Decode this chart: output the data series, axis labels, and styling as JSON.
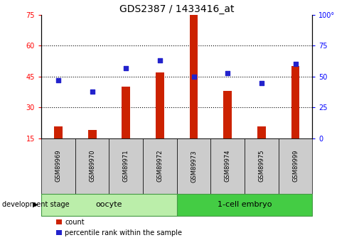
{
  "title": "GDS2387 / 1433416_at",
  "samples": [
    "GSM89969",
    "GSM89970",
    "GSM89971",
    "GSM89972",
    "GSM89973",
    "GSM89974",
    "GSM89975",
    "GSM89999"
  ],
  "counts": [
    21,
    19,
    40,
    47,
    75,
    38,
    21,
    50
  ],
  "percentiles": [
    47,
    38,
    57,
    63,
    50,
    53,
    45,
    60
  ],
  "ylim_left": [
    15,
    75
  ],
  "ylim_right": [
    0,
    100
  ],
  "yticks_left": [
    15,
    30,
    45,
    60,
    75
  ],
  "yticks_right": [
    0,
    25,
    50,
    75,
    100
  ],
  "ytick_right_labels": [
    "0",
    "25",
    "50",
    "75",
    "100°"
  ],
  "bar_color": "#cc2200",
  "dot_color": "#2222cc",
  "group_oocyte_label": "oocyte",
  "group_embryo_label": "1-cell embryo",
  "group_oocyte_color": "#bbeeaa",
  "group_embryo_color": "#44cc44",
  "group_label_text": "development stage",
  "legend_count_label": "count",
  "legend_pct_label": "percentile rank within the sample",
  "sample_box_color": "#cccccc",
  "title_fontsize": 10,
  "tick_fontsize": 7,
  "label_fontsize": 7,
  "group_fontsize": 8,
  "legend_fontsize": 7
}
